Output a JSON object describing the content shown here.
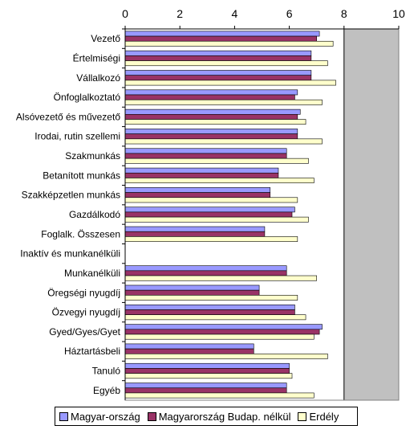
{
  "chart_data": {
    "type": "bar",
    "orientation": "horizontal",
    "title": "",
    "xlabel": "",
    "ylabel": "",
    "xlim": [
      0,
      10
    ],
    "x_ticks": [
      "0",
      "2",
      "4",
      "6",
      "8",
      "10"
    ],
    "shaded_band_from": 8,
    "grid": false,
    "legend_placement": "bottom",
    "categories": [
      "Vezető",
      "Értelmiségi",
      "Vállalkozó",
      "Önfoglalkoztató",
      "Alsóvezető és művezető",
      "Irodai, rutin szellemi",
      "Szakmunkás",
      "Betanított munkás",
      "Szakképzetlen munkás",
      "Gazdálkodó",
      "Foglalk. Összesen",
      "Inaktív és munkanélküli",
      "Munkanélküli",
      "Öregségi nyugdíj",
      "Özvegyi nyugdíj",
      "Gyed/Gyes/Gyet",
      "Háztartásbeli",
      "Tanuló",
      "Egyéb"
    ],
    "series": [
      {
        "name": "Magyar-ország",
        "color": "#9999ff",
        "values": [
          7.1,
          6.8,
          6.8,
          6.3,
          6.4,
          6.3,
          5.9,
          5.6,
          5.3,
          6.2,
          5.1,
          null,
          5.9,
          4.9,
          6.2,
          7.2,
          4.7,
          6.0,
          5.9
        ]
      },
      {
        "name": "Magyarország Budap. nélkül",
        "color": "#993366",
        "values": [
          7.0,
          6.8,
          6.8,
          6.2,
          6.3,
          6.3,
          5.9,
          5.6,
          5.3,
          6.1,
          5.1,
          null,
          5.9,
          4.9,
          6.2,
          7.1,
          4.7,
          6.0,
          5.9
        ]
      },
      {
        "name": "Erdély",
        "color": "#ffffcc",
        "values": [
          7.6,
          7.4,
          7.7,
          7.2,
          6.6,
          7.2,
          6.7,
          6.9,
          6.3,
          6.7,
          6.3,
          null,
          7.0,
          6.3,
          6.6,
          6.9,
          7.4,
          6.1,
          6.9
        ]
      }
    ]
  }
}
